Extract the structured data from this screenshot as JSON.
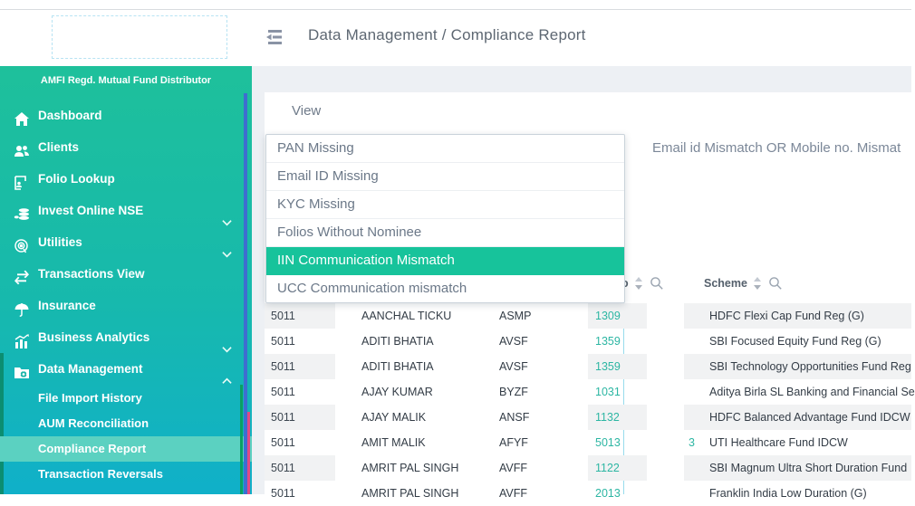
{
  "header": {
    "title": "Data Management / Compliance Report"
  },
  "sidebar": {
    "tagline": "AMFI Regd. Mutual Fund Distributor",
    "items": [
      {
        "label": "Dashboard",
        "icon": "home"
      },
      {
        "label": "Clients",
        "icon": "users"
      },
      {
        "label": "Folio Lookup",
        "icon": "folio"
      },
      {
        "label": "Invest Online NSE",
        "icon": "coins",
        "chevron": "down"
      },
      {
        "label": "Utilities",
        "icon": "utilities",
        "chevron": "down"
      },
      {
        "label": "Transactions View",
        "icon": "transactions"
      },
      {
        "label": "Insurance",
        "icon": "umbrella"
      },
      {
        "label": "Business Analytics",
        "icon": "analytics",
        "chevron": "down"
      },
      {
        "label": "Data Management",
        "icon": "data-management",
        "chevron": "up",
        "active_section": true
      }
    ],
    "subitems": [
      {
        "label": "File Import History",
        "active": false
      },
      {
        "label": "AUM Reconciliation",
        "active": false
      },
      {
        "label": "Compliance Report",
        "active": true
      },
      {
        "label": "Transaction Reversals",
        "active": false
      }
    ]
  },
  "view": {
    "label": "View",
    "options": [
      "PAN Missing",
      "Email ID Missing",
      "KYC Missing",
      "Folios Without Nominee",
      "IIN Communication Mismatch",
      "UCC Communication mismatch"
    ],
    "selected_index": 4,
    "right_filter_text": "Email id Mismatch OR Mobile no. Mismat"
  },
  "table": {
    "visible_headers": {
      "partial": "o",
      "scheme": "Scheme"
    },
    "rows": [
      {
        "id": "5011",
        "name": "AANCHAL TICKU",
        "pan": "ASMP",
        "mobile": "1309",
        "mobile_tail": "",
        "scheme": "HDFC Flexi Cap Fund Reg (G)",
        "striped": true
      },
      {
        "id": "5011",
        "name": "ADITI BHATIA",
        "pan": "AVSF",
        "mobile": "1359",
        "mobile_tail": "",
        "scheme": "SBI Focused Equity Fund Reg (G)",
        "striped": false
      },
      {
        "id": "5011",
        "name": "ADITI BHATIA",
        "pan": "AVSF",
        "mobile": "1359",
        "mobile_tail": "",
        "scheme": "SBI Technology Opportunities Fund Reg",
        "striped": true
      },
      {
        "id": "5011",
        "name": "AJAY KUMAR",
        "pan": "BYZF",
        "mobile": "1031",
        "mobile_tail": "",
        "scheme": "Aditya Birla SL Banking and Financial Se",
        "striped": false
      },
      {
        "id": "5011",
        "name": "AJAY MALIK",
        "pan": "ANSF",
        "mobile": "1132",
        "mobile_tail": "",
        "scheme": "HDFC Balanced Advantage Fund IDCW",
        "striped": true
      },
      {
        "id": "5011",
        "name": "AMIT MALIK",
        "pan": "AFYF",
        "mobile": "5013",
        "mobile_tail": "3",
        "scheme": "UTI Healthcare Fund IDCW",
        "striped": false
      },
      {
        "id": "5011",
        "name": "AMRIT PAL SINGH",
        "pan": "AVFF",
        "mobile": "1122",
        "mobile_tail": "",
        "scheme": "SBI Magnum Ultra Short Duration Fund",
        "striped": true
      },
      {
        "id": "5011",
        "name": "AMRIT PAL SINGH",
        "pan": "AVFF",
        "mobile": "2013",
        "mobile_tail": "",
        "scheme": "Franklin India Low Duration (G)",
        "striped": false
      }
    ]
  },
  "colors": {
    "sidebar_gradient_top": "#1ec09b",
    "sidebar_gradient_bottom": "#10b0c9",
    "active_subitem_bg": "#5bd1c1",
    "dropdown_selected_bg": "#17c39b",
    "teal_number_text": "#2db6a3",
    "section_indicator": "#0b8e71",
    "scrollbar_blue": "#3e6ed0",
    "scrollbar_green": "#0a9f63",
    "scrollbar_pink": "#e14a84",
    "header_underline_teal": "#1cc2a0",
    "guide_line_cyan": "#97dcec",
    "content_background": "#edf0f4"
  }
}
